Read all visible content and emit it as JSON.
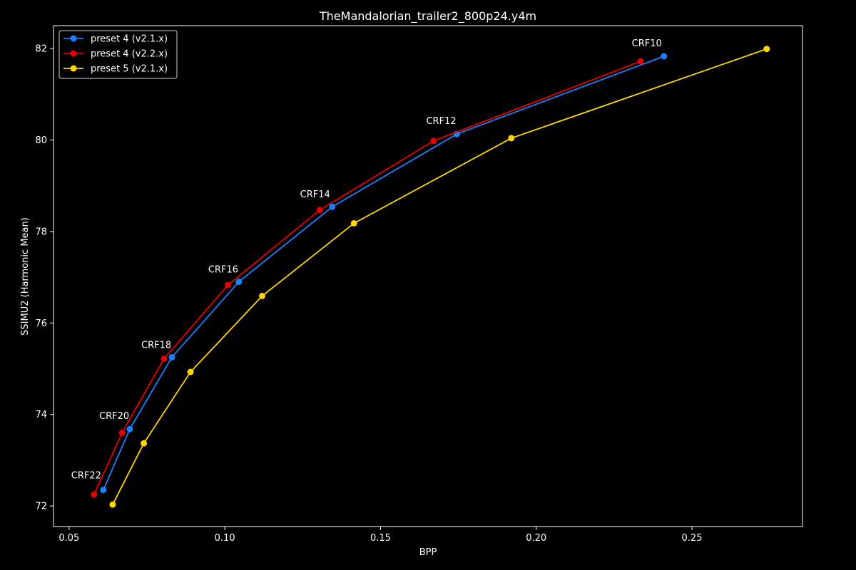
{
  "chart_data": {
    "type": "line",
    "title": "TheMandalorian_trailer2_800p24.y4m",
    "xlabel": "BPP",
    "ylabel": "SSIMU2 (Harmonic Mean)",
    "xlim": [
      0.045,
      0.2855
    ],
    "ylim": [
      71.55,
      82.5
    ],
    "xticks": [
      0.05,
      0.1,
      0.15,
      0.2,
      0.25
    ],
    "xtick_labels": [
      "0.05",
      "0.10",
      "0.15",
      "0.20",
      "0.25"
    ],
    "yticks": [
      72,
      74,
      76,
      78,
      80,
      82
    ],
    "ytick_labels": [
      "72",
      "74",
      "76",
      "78",
      "80",
      "82"
    ],
    "grid": false,
    "legend_position": "top-left",
    "series": [
      {
        "name": "preset 4 (v2.1.x)",
        "color": "#1a80ff",
        "x": [
          0.061,
          0.0695,
          0.083,
          0.1045,
          0.1345,
          0.1745,
          0.241
        ],
        "y": [
          72.35,
          73.68,
          75.25,
          76.9,
          78.54,
          80.13,
          81.83
        ]
      },
      {
        "name": "preset 4 (v2.2.x)",
        "color": "#e60000",
        "x": [
          0.058,
          0.067,
          0.0805,
          0.101,
          0.1305,
          0.167,
          0.2335
        ],
        "y": [
          72.25,
          73.6,
          75.22,
          76.83,
          78.47,
          79.98,
          81.72
        ]
      },
      {
        "name": "preset 5 (v2.1.x)",
        "color": "#ffd500",
        "x": [
          0.064,
          0.074,
          0.089,
          0.112,
          0.1415,
          0.192,
          0.274
        ],
        "y": [
          72.03,
          73.37,
          74.93,
          76.59,
          78.18,
          80.04,
          81.99
        ]
      }
    ],
    "annotations": [
      {
        "text": "CRF22",
        "x": 0.0555,
        "y": 72.6
      },
      {
        "text": "CRF20",
        "x": 0.0645,
        "y": 73.9
      },
      {
        "text": "CRF18",
        "x": 0.078,
        "y": 75.45
      },
      {
        "text": "CRF16",
        "x": 0.0995,
        "y": 77.1
      },
      {
        "text": "CRF14",
        "x": 0.129,
        "y": 78.75
      },
      {
        "text": "CRF12",
        "x": 0.1695,
        "y": 80.35
      },
      {
        "text": "CRF10",
        "x": 0.2355,
        "y": 82.05
      }
    ]
  }
}
